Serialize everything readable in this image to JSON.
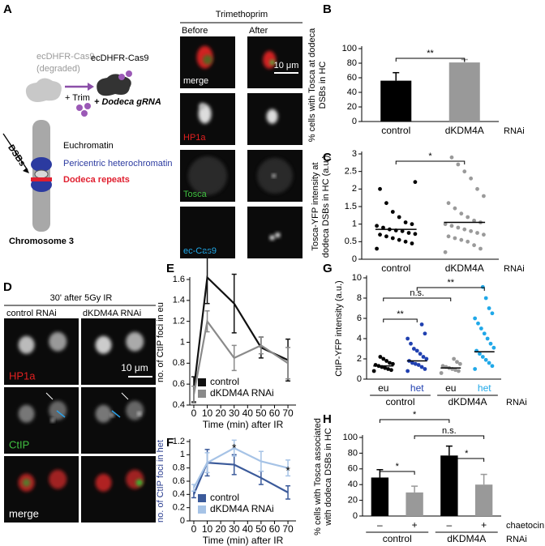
{
  "panel_letters": [
    "A",
    "B",
    "C",
    "D",
    "E",
    "F",
    "G",
    "H"
  ],
  "panel_a": {
    "header": "Trimethoprim",
    "columns": [
      "Before",
      "After"
    ],
    "channels": [
      "merge",
      "HP1a",
      "Tosca",
      "ec-Cas9"
    ],
    "scale_bar": "10 μm",
    "degraded_label": [
      "ecDHFR-Cas9",
      "(degraded)"
    ],
    "cas9_label": "ecDHFR-Cas9",
    "trim_label": "+ Trim",
    "grna_label": "+ Dodeca gRNA",
    "chromosome_regions": [
      "Euchromatin",
      "Pericentric heterochromatin",
      "Dodeca repeats"
    ],
    "dsbs_label": "DSBs",
    "chromosome_label": "Chromosome 3"
  },
  "panel_d": {
    "header": "30' after 5Gy IR",
    "columns": [
      "control RNAi",
      "dKDM4A RNAi"
    ],
    "channels": [
      "HP1a",
      "CtIP",
      "merge"
    ],
    "scale_bar": "10 μm"
  },
  "chart_data": [
    {
      "type": "bar",
      "ylabel": [
        "% cells with Tosca at dodeca",
        "DSBs in HC"
      ],
      "categories": [
        "control",
        "dKDM4A"
      ],
      "values": [
        56,
        81
      ],
      "errors": [
        11,
        4
      ],
      "colors": [
        "#000000",
        "#999999"
      ],
      "ylim": [
        0,
        100
      ],
      "yticks": [
        0,
        20,
        40,
        60,
        80,
        100
      ],
      "group_label": "RNAi",
      "annotations": [
        "**"
      ]
    },
    {
      "type": "strip",
      "ylabel": [
        "Tosca-YFP intensity at",
        "dodeca DSBs in HC (a.u.)"
      ],
      "categories": [
        "control",
        "dKDM4A"
      ],
      "colors": [
        "#000000",
        "#9a9a9a"
      ],
      "values": [
        [
          0.3,
          0.45,
          0.5,
          0.55,
          0.6,
          0.65,
          0.7,
          0.72,
          0.75,
          0.8,
          0.82,
          0.85,
          0.9,
          0.95,
          1.0,
          1.05,
          1.2,
          1.35,
          1.6,
          2.0,
          2.2
        ],
        [
          0.2,
          0.3,
          0.4,
          0.5,
          0.55,
          0.6,
          0.65,
          0.7,
          0.75,
          0.8,
          0.85,
          0.9,
          0.95,
          1.0,
          1.05,
          1.1,
          1.2,
          1.3,
          1.45,
          1.6,
          1.8,
          2.0,
          2.3,
          2.5,
          2.7,
          2.9
        ]
      ],
      "means": [
        0.85,
        1.05
      ],
      "ylim": [
        0,
        3
      ],
      "yticks": [
        0,
        0.5,
        1,
        1.5,
        2,
        2.5,
        3
      ],
      "group_label": "RNAi",
      "annotations": [
        "*"
      ]
    },
    {
      "type": "line",
      "ylabel": [
        "no. of CtIP foci in eu"
      ],
      "x": [
        0,
        10,
        30,
        50,
        70
      ],
      "series": [
        {
          "name": "control",
          "color": "#111111",
          "values": [
            0.55,
            1.62,
            1.37,
            0.95,
            0.83
          ],
          "errors": [
            0.12,
            0.25,
            0.28,
            0.1,
            0.2
          ]
        },
        {
          "name": "dKDM4A RNAi",
          "color": "#8a8a8a",
          "values": [
            0.5,
            1.2,
            0.85,
            0.97,
            0.8
          ],
          "errors": [
            0.08,
            0.1,
            0.12,
            0.08,
            0.15
          ]
        }
      ],
      "xlim": [
        -3,
        76
      ],
      "xticks": [
        0,
        10,
        20,
        30,
        40,
        50,
        60,
        70
      ],
      "ylim": [
        0.4,
        1.6
      ],
      "yticks": [
        0.4,
        0.6,
        0.8,
        1,
        1.2,
        1.4,
        1.6
      ],
      "xlabel": "Time (min) after IR",
      "legend": "lower left"
    },
    {
      "type": "line",
      "ylabel": [
        "no. of CtIP foci in het"
      ],
      "ylabel_color": "#2a3d8f",
      "x": [
        0,
        10,
        30,
        50,
        70
      ],
      "series": [
        {
          "name": "control",
          "color": "#3b5a9a",
          "values": [
            0.4,
            0.88,
            0.85,
            0.65,
            0.43
          ],
          "errors": [
            0.05,
            0.2,
            0.15,
            0.1,
            0.1
          ]
        },
        {
          "name": "dKDM4A RNAi",
          "color": "#a6c3e6",
          "values": [
            0.5,
            0.88,
            1.1,
            0.9,
            0.8
          ],
          "errors": [
            0.05,
            0.15,
            0.12,
            0.15,
            0.12
          ]
        }
      ],
      "xlim": [
        -3,
        76
      ],
      "xticks": [
        0,
        10,
        20,
        30,
        40,
        50,
        60,
        70
      ],
      "ylim": [
        0,
        1.2
      ],
      "yticks": [
        0,
        0.2,
        0.4,
        0.6,
        0.8,
        1,
        1.2
      ],
      "xlabel": "Time (min) after IR",
      "legend": "lower left",
      "annotations": [
        "*",
        "*"
      ]
    },
    {
      "type": "strip",
      "ylabel": [
        "CtIP-YFP intensity (a.u.)"
      ],
      "categories": [
        "eu",
        "het",
        "eu",
        "het"
      ],
      "colors": [
        "#000000",
        "#2040b0",
        "#999999",
        "#20a8e8"
      ],
      "label_colors": [
        "#000000",
        "#2040b0",
        "#000000",
        "#20a8e8"
      ],
      "values": [
        [
          0.8,
          0.9,
          1.0,
          1.1,
          1.2,
          1.3,
          1.4,
          1.5,
          1.6,
          1.8,
          2.0,
          2.2
        ],
        [
          0.8,
          1.0,
          1.2,
          1.4,
          1.5,
          1.6,
          1.8,
          2.0,
          2.2,
          2.5,
          2.8,
          3.0,
          3.5,
          4.0,
          4.5,
          5.4
        ],
        [
          0.6,
          0.8,
          0.9,
          1.0,
          1.1,
          1.2,
          1.3,
          1.5,
          1.7,
          2.0
        ],
        [
          1.0,
          1.3,
          1.6,
          1.9,
          2.2,
          2.5,
          2.8,
          3.1,
          3.5,
          4.0,
          4.5,
          5.0,
          5.5,
          6.0,
          6.5,
          7.0,
          8.0,
          9.1
        ]
      ],
      "means": [
        1.3,
        1.8,
        1.1,
        2.7
      ],
      "ylim": [
        0,
        10
      ],
      "yticks": [
        0,
        2,
        4,
        6,
        8,
        10
      ],
      "groups": [
        "control",
        "dKDM4A"
      ],
      "group_label": "RNAi",
      "annotations": [
        "**",
        "n.s.",
        "**"
      ]
    },
    {
      "type": "bar",
      "ylabel": [
        "% cells with Tosca associated",
        "with dodeca DSBs in HC"
      ],
      "categories": [
        "–",
        "+",
        "–",
        "+"
      ],
      "values": [
        49,
        30,
        77,
        40
      ],
      "errors": [
        10,
        8,
        12,
        13
      ],
      "colors": [
        "#000000",
        "#999999",
        "#000000",
        "#999999"
      ],
      "ylim": [
        0,
        100
      ],
      "yticks": [
        0,
        20,
        40,
        60,
        80,
        100
      ],
      "groups": [
        "control",
        "dKDM4A"
      ],
      "category_label": "chaetocin",
      "group_label": "RNAi",
      "annotations": [
        "*",
        "n.s.",
        "*",
        "*"
      ]
    }
  ]
}
